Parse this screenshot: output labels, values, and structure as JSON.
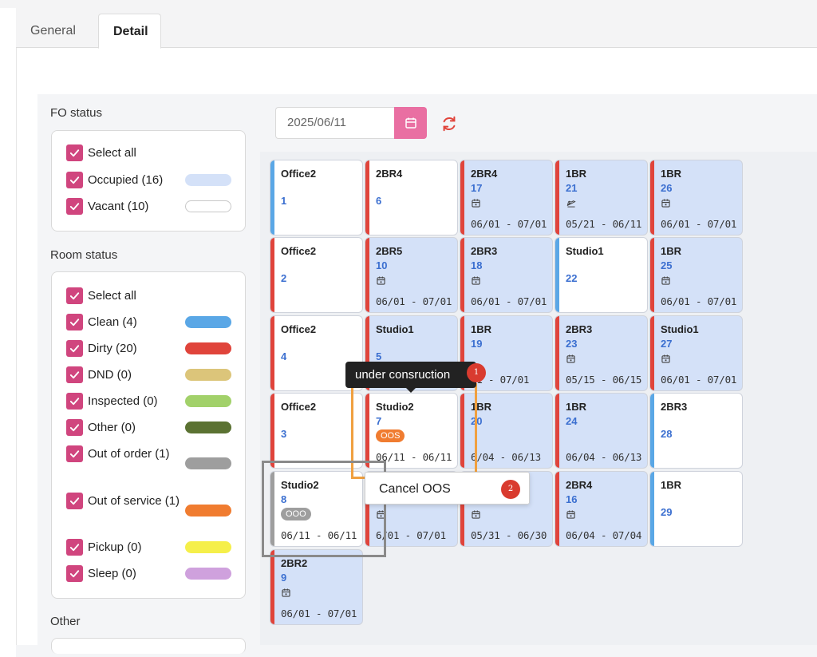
{
  "tabs": [
    {
      "label": "General"
    },
    {
      "label": "Detail"
    }
  ],
  "fo_status": {
    "title": "FO status",
    "items": [
      {
        "label": "Select all"
      },
      {
        "label": "Occupied (16)",
        "color": "#d4e1f8"
      },
      {
        "label": "Vacant (10)",
        "color": "#ffffff"
      }
    ]
  },
  "room_status": {
    "title": "Room status",
    "items": [
      {
        "label": "Select all"
      },
      {
        "label": "Clean (4)",
        "color": "#5aa7e6"
      },
      {
        "label": "Dirty (20)",
        "color": "#e0443b"
      },
      {
        "label": "DND (0)",
        "color": "#dcc57a"
      },
      {
        "label": "Inspected (0)",
        "color": "#a2d16a"
      },
      {
        "label": "Other (0)",
        "color": "#5b7232"
      },
      {
        "label": "Out of order (1)",
        "color": "#9e9e9e"
      },
      {
        "label": "Out of service (1)",
        "color": "#f07c30"
      },
      {
        "label": "Pickup (0)",
        "color": "#f5ef4a"
      },
      {
        "label": "Sleep (0)",
        "color": "#cfa1dd"
      }
    ]
  },
  "other": {
    "title": "Other"
  },
  "toolbar": {
    "date": "2025/06/11",
    "calendar_icon": "calendar-icon",
    "refresh_icon": "refresh-icon"
  },
  "rooms": [
    {
      "type": "Office2",
      "number": "1",
      "fo": "vacant",
      "status": "clean"
    },
    {
      "type": "2BR4",
      "number": "6",
      "fo": "vacant",
      "status": "dirty"
    },
    {
      "type": "2BR4",
      "number": "17",
      "fo": "occupied",
      "status": "dirty",
      "icon": "calendar-icon",
      "dates": "06/01 - 07/01"
    },
    {
      "type": "1BR",
      "number": "21",
      "fo": "occupied",
      "status": "dirty",
      "icon": "departure-icon",
      "dates": "05/21 - 06/11"
    },
    {
      "type": "1BR",
      "number": "26",
      "fo": "occupied",
      "status": "dirty",
      "icon": "calendar-icon",
      "dates": "06/01 - 07/01"
    },
    {
      "type": "Office2",
      "number": "2",
      "fo": "vacant",
      "status": "dirty"
    },
    {
      "type": "2BR5",
      "number": "10",
      "fo": "occupied",
      "status": "dirty",
      "icon": "calendar-icon",
      "dates": "06/01 - 07/01"
    },
    {
      "type": "2BR3",
      "number": "18",
      "fo": "occupied",
      "status": "dirty",
      "icon": "calendar-icon",
      "dates": "06/01 - 07/01"
    },
    {
      "type": "Studio1",
      "number": "22",
      "fo": "vacant",
      "status": "clean"
    },
    {
      "type": "1BR",
      "number": "25",
      "fo": "occupied",
      "status": "dirty",
      "icon": "calendar-icon",
      "dates": "06/01 - 07/01"
    },
    {
      "type": "Office2",
      "number": "4",
      "fo": "vacant",
      "status": "dirty"
    },
    {
      "type": "Studio1",
      "number": "5",
      "fo": "occupied",
      "status": "dirty"
    },
    {
      "type": "1BR",
      "number": "19",
      "fo": "occupied",
      "status": "dirty",
      "dates": "01 - 07/01"
    },
    {
      "type": "2BR3",
      "number": "23",
      "fo": "occupied",
      "status": "dirty",
      "icon": "calendar-icon",
      "dates": "05/15 - 06/15"
    },
    {
      "type": "Studio1",
      "number": "27",
      "fo": "occupied",
      "status": "dirty",
      "icon": "calendar-icon",
      "dates": "06/01 - 07/01"
    },
    {
      "type": "Office2",
      "number": "3",
      "fo": "vacant",
      "status": "dirty"
    },
    {
      "type": "Studio2",
      "number": "7",
      "fo": "vacant",
      "status": "dirty",
      "badge": "OOS",
      "dates": "06/11 - 06/11"
    },
    {
      "type": "1BR",
      "number": "20",
      "fo": "occupied",
      "status": "dirty",
      "dates": "6/04 - 06/13"
    },
    {
      "type": "1BR",
      "number": "24",
      "fo": "occupied",
      "status": "dirty",
      "dates": "06/04 - 06/13"
    },
    {
      "type": "2BR3",
      "number": "28",
      "fo": "vacant",
      "status": "clean"
    },
    {
      "type": "Studio2",
      "number": "8",
      "fo": "vacant",
      "status": "ooo",
      "badge": "OOO",
      "dates": "06/11 - 06/11"
    },
    {
      "type": "",
      "number": "",
      "fo": "occupied",
      "status": "dirty",
      "icon": "calendar-icon",
      "dates": "6/01 - 07/01"
    },
    {
      "type": "",
      "number": "",
      "fo": "occupied",
      "status": "dirty",
      "icon": "calendar-icon",
      "dates": "05/31 - 06/30"
    },
    {
      "type": "2BR4",
      "number": "16",
      "fo": "occupied",
      "status": "dirty",
      "icon": "calendar-icon",
      "dates": "06/04 - 07/04"
    },
    {
      "type": "1BR",
      "number": "29",
      "fo": "vacant",
      "status": "clean"
    },
    {
      "type": "2BR2",
      "number": "9",
      "fo": "occupied",
      "status": "dirty",
      "icon": "calendar-icon",
      "dates": "06/01 - 07/01"
    }
  ],
  "overlays": {
    "tooltip": "under consruction",
    "step1": "1",
    "cancel_menu": "Cancel OOS",
    "step2": "2"
  }
}
